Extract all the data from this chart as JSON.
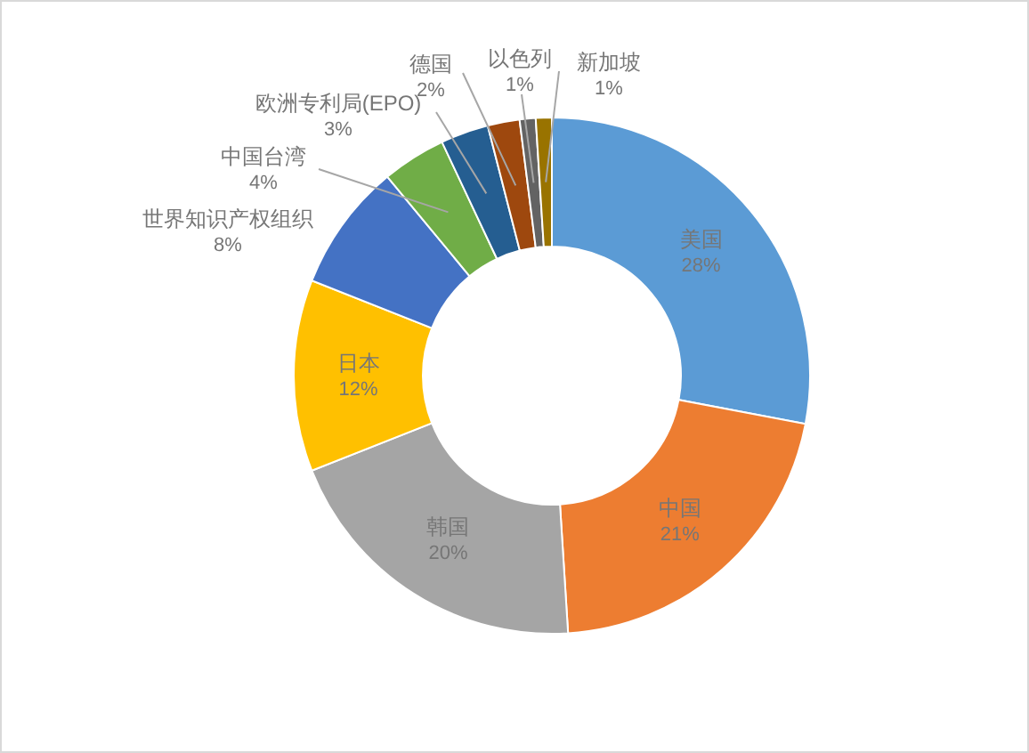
{
  "chart_data": {
    "type": "donut",
    "categories": [
      "美国",
      "中国",
      "韩国",
      "日本",
      "世界知识产权组织",
      "中国台湾",
      "欧洲专利局(EPO)",
      "德国",
      "以色列",
      "新加坡"
    ],
    "values": [
      28,
      21,
      20,
      12,
      8,
      4,
      3,
      2,
      1,
      1
    ],
    "colors": [
      "#5b9bd5",
      "#ed7d31",
      "#a5a5a5",
      "#ffc000",
      "#4472c4",
      "#70ad47",
      "#255e91",
      "#9e480e",
      "#636363",
      "#997300"
    ],
    "value_labels": [
      "28%",
      "21%",
      "20%",
      "12%",
      "8%",
      "4%",
      "3%",
      "2%",
      "1%",
      "1%"
    ]
  }
}
